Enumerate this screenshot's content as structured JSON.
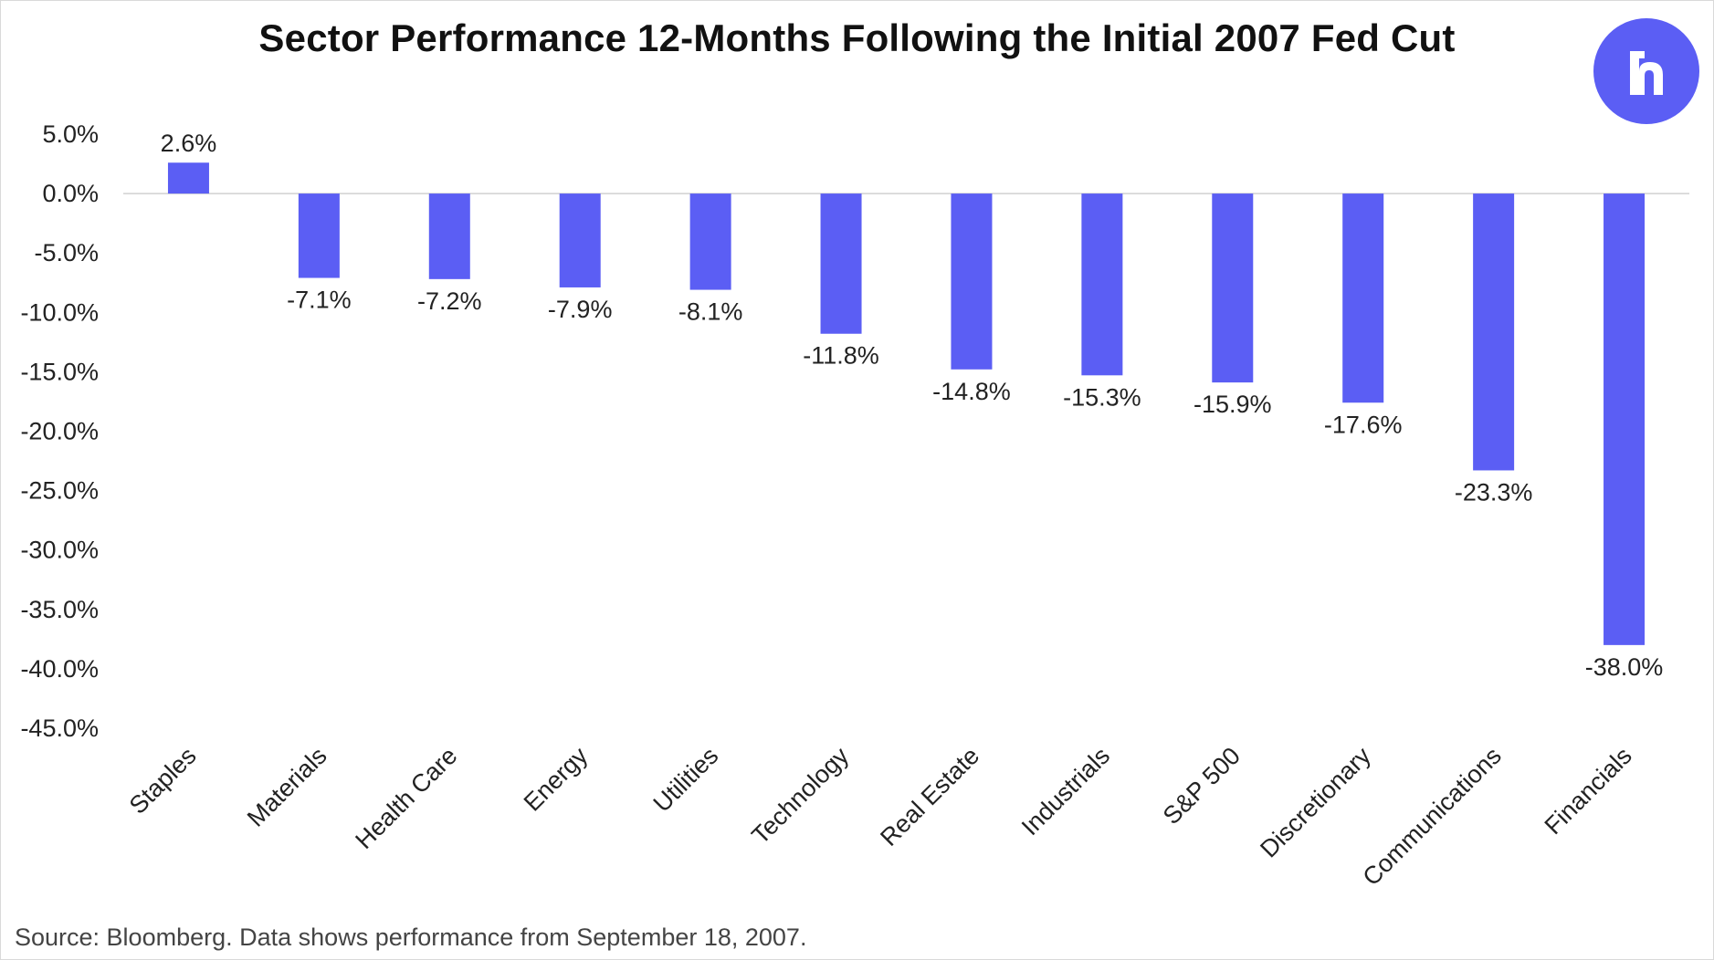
{
  "title": "Sector Performance 12-Months Following the Initial 2007 Fed Cut",
  "source": "Source: Bloomberg. Data shows performance from September 18, 2007.",
  "logo": {
    "icon": "r-logo-icon",
    "color": "#5b5ef4"
  },
  "colors": {
    "bar": "#5b5ef4",
    "axis": "#d0d0d0",
    "text": "#222222"
  },
  "chart_data": {
    "type": "bar",
    "title": "Sector Performance 12-Months Following the Initial 2007 Fed Cut",
    "xlabel": "",
    "ylabel": "",
    "categories": [
      "Staples",
      "Materials",
      "Health Care",
      "Energy",
      "Utilities",
      "Technology",
      "Real Estate",
      "Industrials",
      "S&P 500",
      "Discretionary",
      "Communications",
      "Financials"
    ],
    "values": [
      2.6,
      -7.1,
      -7.2,
      -7.9,
      -8.1,
      -11.8,
      -14.8,
      -15.3,
      -15.9,
      -17.6,
      -23.3,
      -38.0
    ],
    "data_labels": [
      "2.6%",
      "-7.1%",
      "-7.2%",
      "-7.9%",
      "-8.1%",
      "-11.8%",
      "-14.8%",
      "-15.3%",
      "-15.9%",
      "-17.6%",
      "-23.3%",
      "-38.0%"
    ],
    "yticks": [
      5,
      0,
      -5,
      -10,
      -15,
      -20,
      -25,
      -30,
      -35,
      -40,
      -45
    ],
    "ytick_labels": [
      "5.0%",
      "0.0%",
      "-5.0%",
      "-10.0%",
      "-15.0%",
      "-20.0%",
      "-25.0%",
      "-30.0%",
      "-35.0%",
      "-40.0%",
      "-45.0%"
    ],
    "ylim": [
      -45,
      5
    ],
    "grid": false,
    "legend": "none"
  }
}
